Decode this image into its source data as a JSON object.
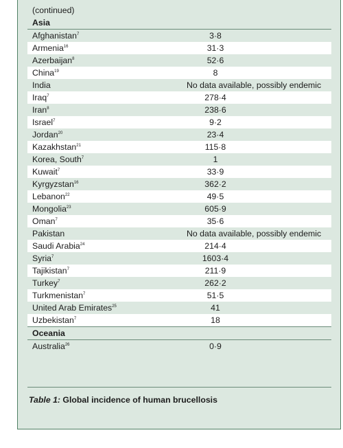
{
  "continued_label": "(continued)",
  "regions": [
    {
      "name": "Asia",
      "rows": [
        {
          "country": "Afghanistan",
          "ref": "7",
          "value": "3·8"
        },
        {
          "country": "Armenia",
          "ref": "16",
          "value": "31·3"
        },
        {
          "country": "Azerbaijan",
          "ref": "8",
          "value": "52·6"
        },
        {
          "country": "China",
          "ref": "19",
          "value": "8"
        },
        {
          "country": "India",
          "ref": "",
          "value": "No data available, possibly endemic"
        },
        {
          "country": "Iraq",
          "ref": "7",
          "value": "278·4"
        },
        {
          "country": "Iran",
          "ref": "8",
          "value": "238·6"
        },
        {
          "country": "Israel",
          "ref": "7",
          "value": "9·2"
        },
        {
          "country": "Jordan",
          "ref": "20",
          "value": "23·4"
        },
        {
          "country": "Kazakhstan",
          "ref": "21",
          "value": "115·8"
        },
        {
          "country": "Korea, South",
          "ref": "7",
          "value": "1"
        },
        {
          "country": "Kuwait",
          "ref": "7",
          "value": "33·9"
        },
        {
          "country": "Kyrgyzstan",
          "ref": "16",
          "value": "362·2"
        },
        {
          "country": "Lebanon",
          "ref": "22",
          "value": "49·5"
        },
        {
          "country": "Mongolia",
          "ref": "23",
          "value": "605·9"
        },
        {
          "country": "Oman",
          "ref": "7",
          "value": "35·6"
        },
        {
          "country": "Pakistan",
          "ref": "",
          "value": "No data available, possibly endemic"
        },
        {
          "country": "Saudi Arabia",
          "ref": "24",
          "value": "214·4"
        },
        {
          "country": "Syria",
          "ref": "7",
          "value": "1603·4"
        },
        {
          "country": "Tajikistan",
          "ref": "7",
          "value": "211·9"
        },
        {
          "country": "Turkey",
          "ref": "7",
          "value": "262·2"
        },
        {
          "country": "Turkmenistan",
          "ref": "7",
          "value": "51·5"
        },
        {
          "country": "United Arab Emirates",
          "ref": "25",
          "value": "41"
        },
        {
          "country": "Uzbekistan",
          "ref": "7",
          "value": "18"
        }
      ]
    },
    {
      "name": "Oceania",
      "rows": [
        {
          "country": "Australia",
          "ref": "26",
          "value": "0·9"
        }
      ]
    }
  ],
  "caption": {
    "label": "Table 1:",
    "text": " Global incidence of human brucellosis"
  }
}
